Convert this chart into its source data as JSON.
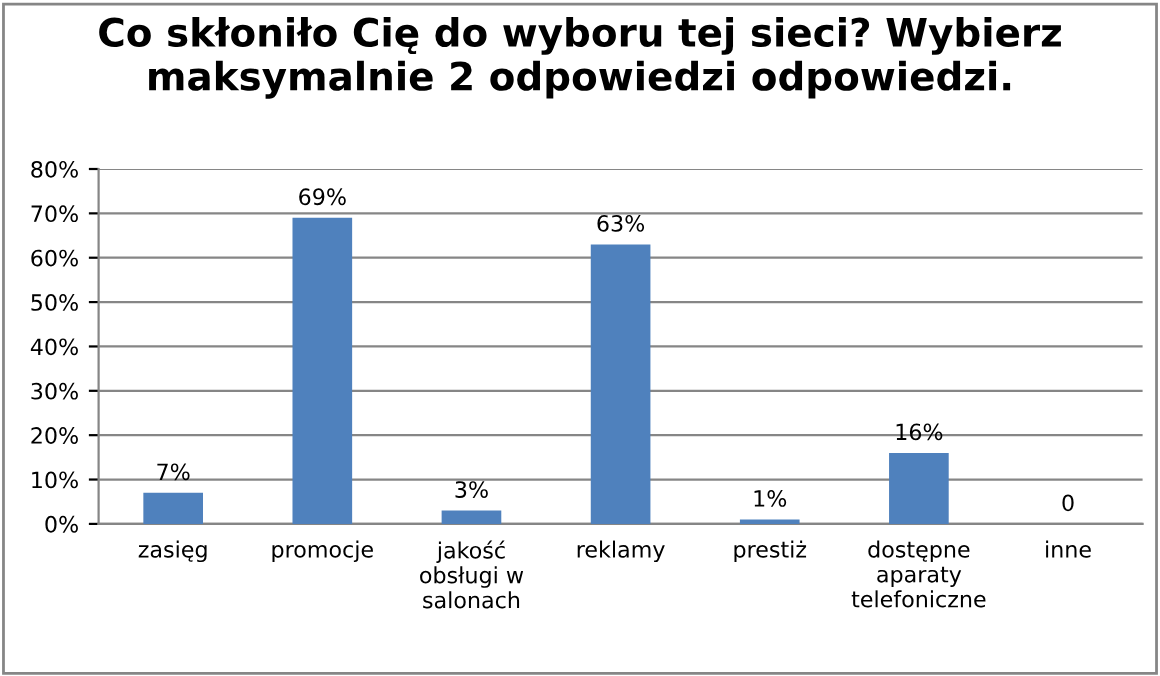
{
  "chart_data": {
    "type": "bar",
    "title": "Co skłoniło Cię do wyboru tej sieci? Wybierz\nmaksymalnie 2 odpowiedzi odpowiedzi.",
    "categories": [
      "zasięg",
      "promocje",
      "jakość\nobsługi w\nsalonach",
      "reklamy",
      "prestiż",
      "dostępne\naparaty\ntelefoniczne",
      "inne"
    ],
    "values": [
      7,
      69,
      3,
      63,
      1,
      16,
      0
    ],
    "value_labels": [
      "7%",
      "69%",
      "3%",
      "63%",
      "1%",
      "16%",
      "0"
    ],
    "color": "#4f81bd",
    "ylim": [
      0,
      80
    ],
    "yticks": [
      {
        "value": 0,
        "label": "0%"
      },
      {
        "value": 10,
        "label": "10%"
      },
      {
        "value": 20,
        "label": "20%"
      },
      {
        "value": 30,
        "label": "30%"
      },
      {
        "value": 40,
        "label": "40%"
      },
      {
        "value": 50,
        "label": "50%"
      },
      {
        "value": 60,
        "label": "60%"
      },
      {
        "value": 70,
        "label": "70%"
      },
      {
        "value": 80,
        "label": "80%"
      }
    ],
    "grid": "y"
  }
}
